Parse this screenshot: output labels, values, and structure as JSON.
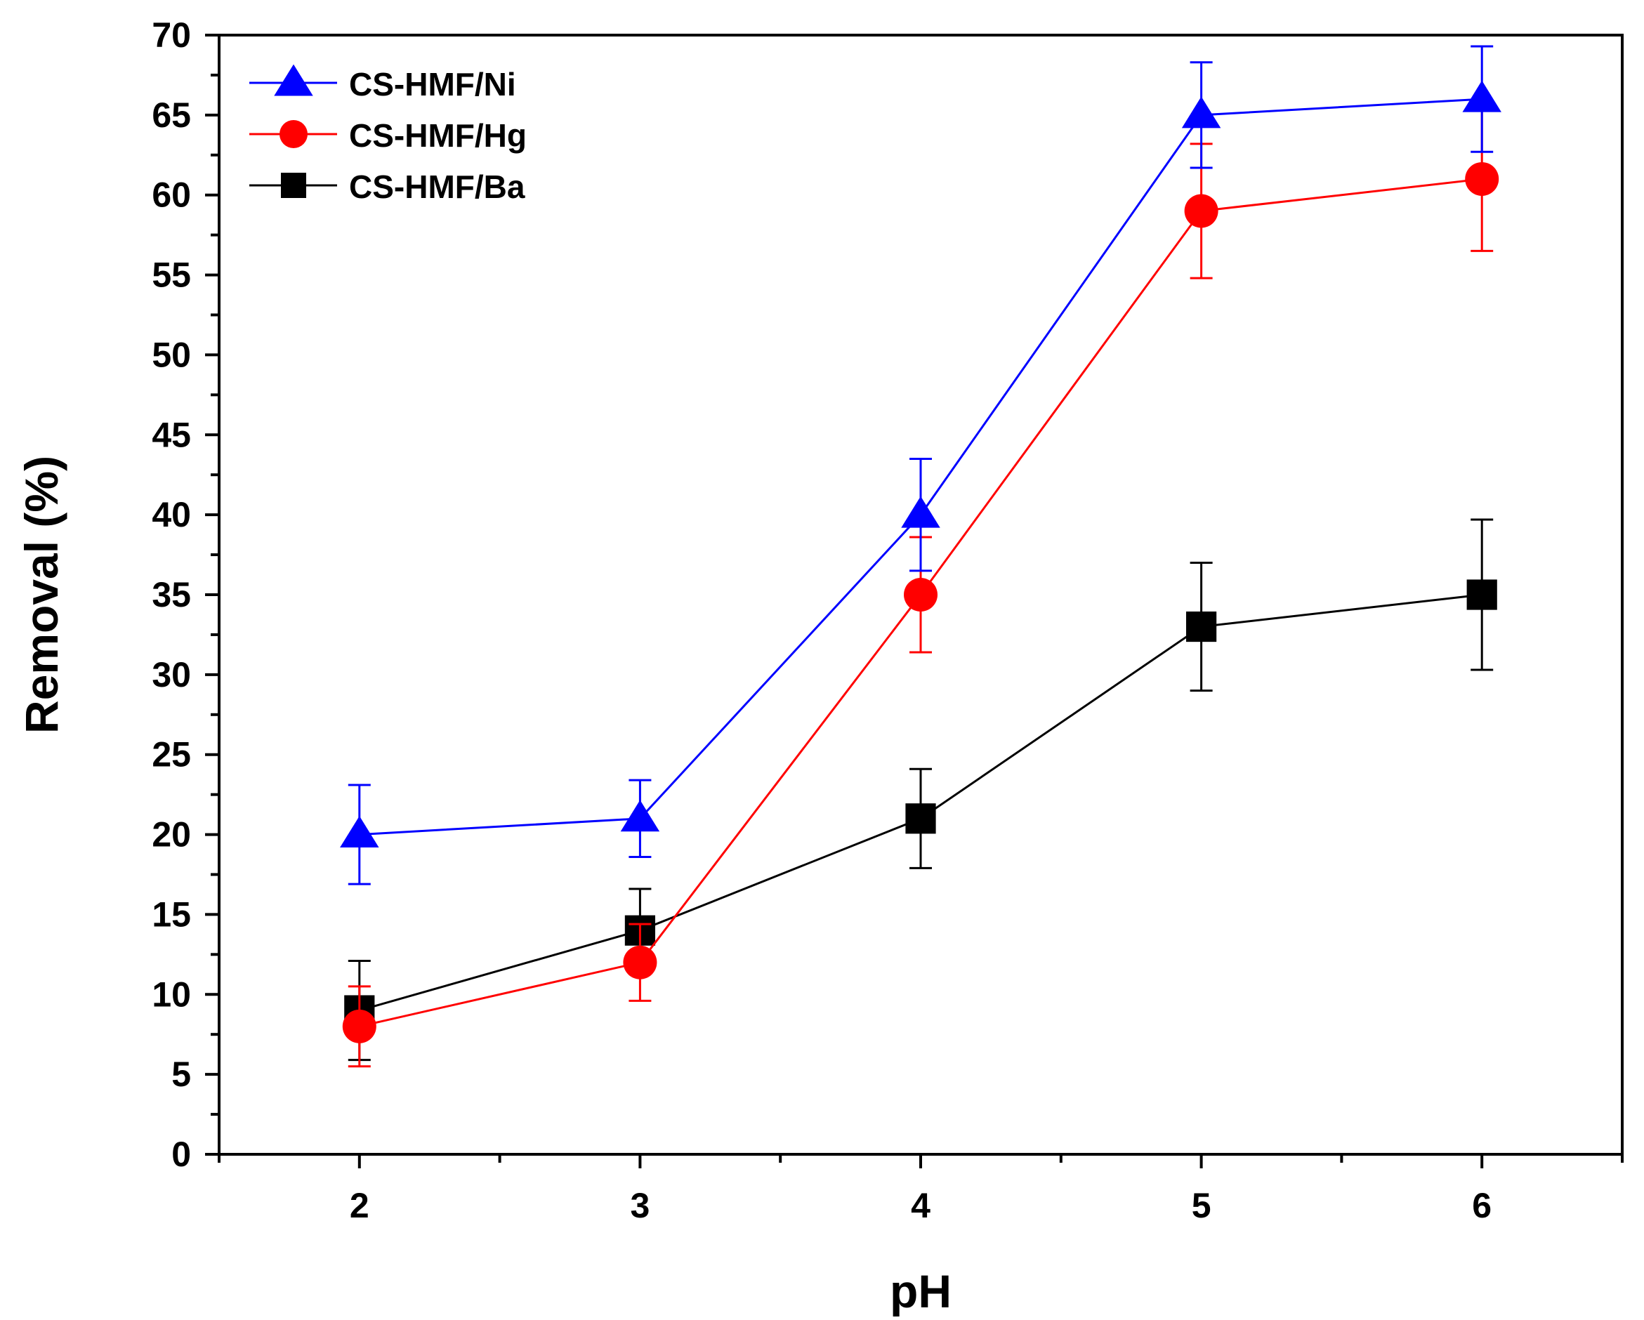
{
  "chart_data": {
    "type": "line",
    "title": "",
    "xlabel": "pH",
    "ylabel": "Removal (%)",
    "xlim": [
      1.5,
      6.5
    ],
    "ylim": [
      0,
      70
    ],
    "x_ticks": [
      2,
      3,
      4,
      5,
      6
    ],
    "y_ticks": [
      0,
      5,
      10,
      15,
      20,
      25,
      30,
      35,
      40,
      45,
      50,
      55,
      60,
      65,
      70
    ],
    "grid": false,
    "legend_position": "top-left",
    "series": [
      {
        "name": "CS-HMF/Ni",
        "color": "#0000ff",
        "marker": "triangle",
        "x": [
          2,
          3,
          4,
          5,
          6
        ],
        "values": [
          20,
          21,
          40,
          65,
          66
        ],
        "error": [
          3.1,
          2.4,
          3.5,
          3.3,
          3.3
        ]
      },
      {
        "name": "CS-HMF/Hg",
        "color": "#ff0000",
        "marker": "circle",
        "x": [
          2,
          3,
          4,
          5,
          6
        ],
        "values": [
          8,
          12,
          35,
          59,
          61
        ],
        "error": [
          2.5,
          2.4,
          3.6,
          4.2,
          4.5
        ]
      },
      {
        "name": "CS-HMF/Ba",
        "color": "#000000",
        "marker": "square",
        "x": [
          2,
          3,
          4,
          5,
          6
        ],
        "values": [
          9,
          14,
          21,
          33,
          35
        ],
        "error": [
          3.1,
          2.6,
          3.1,
          4.0,
          4.7
        ]
      }
    ]
  }
}
